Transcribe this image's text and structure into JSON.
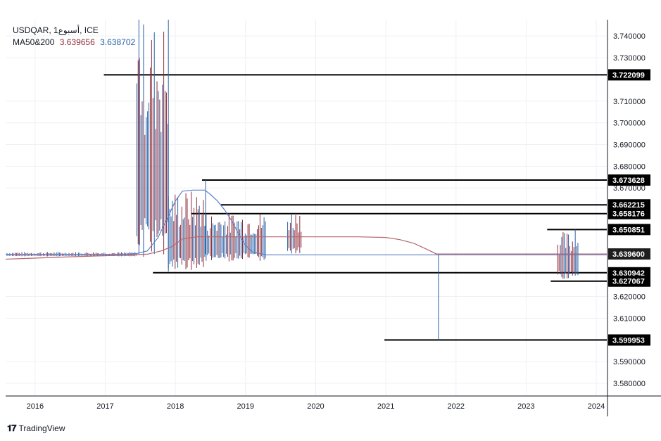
{
  "legend": {
    "symbol_line": "USDQAR, 1أسبوع, ICE",
    "ma_label": "MA50&200",
    "ma50_value": "3.639656",
    "ma200_value": "3.638702"
  },
  "brand": {
    "logo": "𝟏𝟕",
    "name": "TradingView"
  },
  "colors": {
    "up": "#2962a8",
    "down": "#8e2b3b",
    "ma50": "#5b7fc4",
    "ma200": "#b5656f",
    "grid": "#eef0f3",
    "tag_bg": "#000000",
    "current_tag_bg": "#1e1e1e"
  },
  "chart_data": {
    "type": "line",
    "symbol": "USDQAR",
    "interval": "1أسبوع",
    "exchange": "ICE",
    "xlim": [
      2015.58,
      2024.15
    ],
    "ylim": [
      3.5745,
      3.7475
    ],
    "x_ticks": [
      "2016",
      "2017",
      "2018",
      "2019",
      "2020",
      "2021",
      "2022",
      "2023",
      "2024"
    ],
    "y_ticks": [
      "3.740000",
      "3.730000",
      "3.710000",
      "3.700000",
      "3.690000",
      "3.680000",
      "3.670000",
      "3.620000",
      "3.610000",
      "3.590000",
      "3.580000"
    ],
    "horizontal_levels": [
      {
        "price": 3.722099,
        "label": "3.722099",
        "from": 2016.98
      },
      {
        "price": 3.673628,
        "label": "3.673628",
        "from": 2018.38
      },
      {
        "price": 3.662215,
        "label": "3.662215",
        "from": 2018.65
      },
      {
        "price": 3.658176,
        "label": "3.658176",
        "from": 2018.23
      },
      {
        "price": 3.650851,
        "label": "3.650851",
        "from": 2023.3
      },
      {
        "price": 3.630942,
        "label": "3.630942",
        "from": 2017.68
      },
      {
        "price": 3.627067,
        "label": "3.627067",
        "from": 2023.35
      },
      {
        "price": 3.599953,
        "label": "3.599953",
        "from": 2020.98
      }
    ],
    "current_price": {
      "price": 3.6396,
      "label": "3.639600"
    },
    "series": [
      {
        "name": "MA50",
        "points": [
          [
            2015.58,
            3.6394
          ],
          [
            2017.3,
            3.6394
          ],
          [
            2017.45,
            3.6398
          ],
          [
            2017.6,
            3.641
          ],
          [
            2017.75,
            3.647
          ],
          [
            2017.9,
            3.657
          ],
          [
            2018.0,
            3.664
          ],
          [
            2018.1,
            3.6685
          ],
          [
            2018.25,
            3.669
          ],
          [
            2018.42,
            3.669
          ],
          [
            2018.5,
            3.667
          ],
          [
            2018.6,
            3.664
          ],
          [
            2018.7,
            3.66
          ],
          [
            2018.8,
            3.655
          ],
          [
            2018.9,
            3.649
          ],
          [
            2019.0,
            3.6435
          ],
          [
            2019.1,
            3.6405
          ],
          [
            2019.3,
            3.6392
          ],
          [
            2024.15,
            3.6392
          ]
        ]
      },
      {
        "name": "MA200",
        "points": [
          [
            2015.58,
            3.6372
          ],
          [
            2016.5,
            3.6383
          ],
          [
            2017.3,
            3.6391
          ],
          [
            2017.6,
            3.6395
          ],
          [
            2017.8,
            3.641
          ],
          [
            2017.95,
            3.643
          ],
          [
            2018.1,
            3.6465
          ],
          [
            2018.3,
            3.6475
          ],
          [
            2020.6,
            3.6475
          ],
          [
            2021.0,
            3.6472
          ],
          [
            2021.2,
            3.6462
          ],
          [
            2021.4,
            3.6445
          ],
          [
            2021.6,
            3.6415
          ],
          [
            2021.72,
            3.6396
          ],
          [
            2024.15,
            3.6396
          ]
        ]
      }
    ],
    "volatility": [
      {
        "x_range": [
          2015.6,
          2017.45
        ],
        "low": 3.6385,
        "high": 3.6405,
        "color": "up"
      },
      {
        "x_range": [
          2017.45,
          2017.9
        ],
        "low": 3.6375,
        "high": 3.7475,
        "color": "up"
      },
      {
        "x_range": [
          2017.9,
          2018.4
        ],
        "low": 3.632,
        "high": 3.669,
        "color": "down"
      },
      {
        "x_range": [
          2018.4,
          2019.3
        ],
        "low": 3.636,
        "high": 3.659,
        "color": "down"
      },
      {
        "x_range": [
          2019.6,
          2019.8
        ],
        "low": 3.639,
        "high": 3.66,
        "color": "up"
      },
      {
        "x_range": [
          2023.45,
          2023.75
        ],
        "low": 3.628,
        "high": 3.65,
        "color": "down"
      }
    ],
    "spikes": [
      {
        "x": 2017.48,
        "low": 3.6395,
        "high": 3.7475
      },
      {
        "x": 2017.9,
        "low": 3.6315,
        "high": 3.7475
      },
      {
        "x": 2018.43,
        "low": 3.6395,
        "high": 3.6736
      },
      {
        "x": 2021.75,
        "low": 3.6,
        "high": 3.6396
      },
      {
        "x": 2023.7,
        "low": 3.6296,
        "high": 3.6508
      }
    ]
  }
}
